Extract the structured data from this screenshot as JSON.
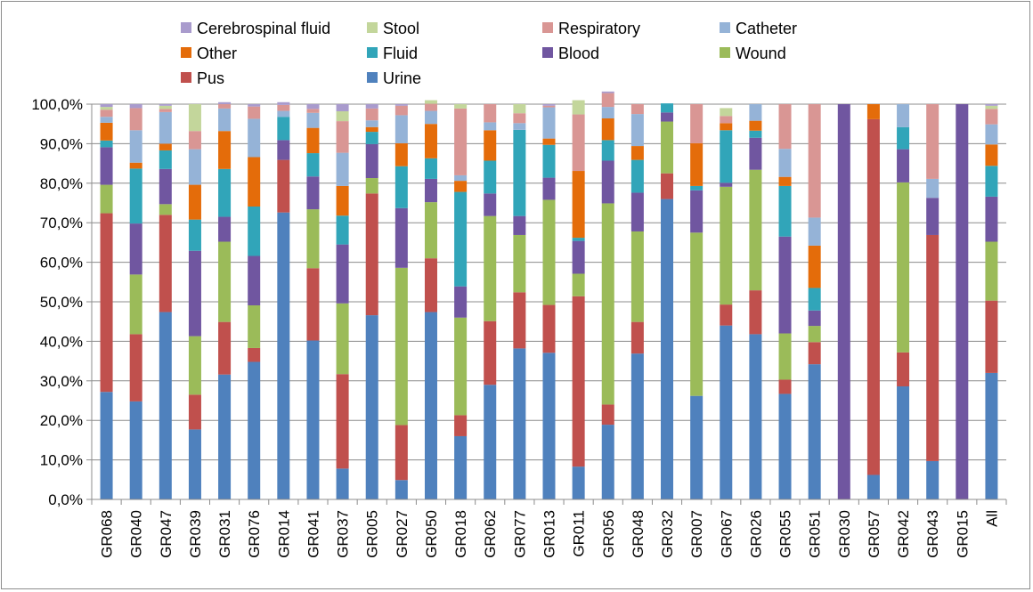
{
  "chart_data": {
    "type": "bar",
    "stacked": true,
    "ylim": [
      0,
      100
    ],
    "y_ticks": [
      "0,0%",
      "10,0%",
      "20,0%",
      "30,0%",
      "40,0%",
      "50,0%",
      "60,0%",
      "70,0%",
      "80,0%",
      "90,0%",
      "100,0%"
    ],
    "grid": "horizontal",
    "legend_position": "top",
    "legend": [
      {
        "name": "Cerebrospinal fluid",
        "color": "#a99bcd"
      },
      {
        "name": "Stool",
        "color": "#c3d69b"
      },
      {
        "name": "Respiratory",
        "color": "#d99694"
      },
      {
        "name": "Catheter",
        "color": "#95b3d7"
      },
      {
        "name": "Other",
        "color": "#e46c0a"
      },
      {
        "name": "Fluid",
        "color": "#31a5b9"
      },
      {
        "name": "Blood",
        "color": "#7056a0"
      },
      {
        "name": "Wound",
        "color": "#9bbb59"
      },
      {
        "name": "Pus",
        "color": "#c0504d"
      },
      {
        "name": "Urine",
        "color": "#4f81bd"
      }
    ],
    "categories": [
      "GR068",
      "GR040",
      "GR047",
      "GR039",
      "GR031",
      "GR076",
      "GR014",
      "GR041",
      "GR037",
      "GR005",
      "GR027",
      "GR050",
      "GR018",
      "GR062",
      "GR077",
      "GR013",
      "GR011",
      "GR056",
      "GR048",
      "GR032",
      "GR007",
      "GR067",
      "GR026",
      "GR055",
      "GR051",
      "GR030",
      "GR057",
      "GR042",
      "GR043",
      "GR015",
      "All"
    ],
    "series": [
      {
        "name": "Urine",
        "color": "#4f81bd",
        "values": [
          27.2,
          24.8,
          47.4,
          17.7,
          31.6,
          34.8,
          72.6,
          40.2,
          7.8,
          46.6,
          4.9,
          47.4,
          16.0,
          29.0,
          38.2,
          37.1,
          8.3,
          18.9,
          36.9,
          76.0,
          26.2,
          44.0,
          41.8,
          26.7,
          34.2,
          0,
          6.2,
          28.6,
          9.7,
          0,
          32.0
        ]
      },
      {
        "name": "Pus",
        "color": "#c0504d",
        "values": [
          45.2,
          17.0,
          24.6,
          8.8,
          13.3,
          3.5,
          13.3,
          18.3,
          23.9,
          30.8,
          13.9,
          13.6,
          5.3,
          16.1,
          14.2,
          12.1,
          43.1,
          5.1,
          8.0,
          6.5,
          0,
          5.3,
          11.1,
          3.6,
          5.6,
          0,
          90.0,
          8.6,
          57.2,
          0,
          18.3
        ]
      },
      {
        "name": "Wound",
        "color": "#9bbb59",
        "values": [
          7.2,
          15.1,
          2.7,
          14.8,
          20.3,
          10.8,
          0,
          14.9,
          17.9,
          3.9,
          39.8,
          14.2,
          24.7,
          26.6,
          14.5,
          26.6,
          5.7,
          50.9,
          22.9,
          13.1,
          41.3,
          29.8,
          30.5,
          11.7,
          4.1,
          0,
          0,
          43.0,
          0,
          0,
          14.9
        ]
      },
      {
        "name": "Blood",
        "color": "#7056a0",
        "values": [
          9.5,
          12.9,
          8.9,
          21.6,
          6.3,
          12.5,
          5.0,
          8.3,
          14.9,
          8.6,
          15.1,
          5.9,
          7.9,
          5.7,
          4.8,
          5.6,
          8.3,
          10.8,
          9.8,
          2.3,
          10.7,
          1.0,
          8.1,
          24.5,
          3.9,
          100,
          0,
          8.4,
          9.4,
          100,
          11.4
        ]
      },
      {
        "name": "Fluid",
        "color": "#31a5b9",
        "values": [
          1.7,
          13.9,
          4.7,
          7.9,
          12.1,
          12.5,
          5.9,
          5.9,
          7.3,
          3.1,
          10.6,
          5.2,
          23.9,
          8.3,
          21.8,
          8.3,
          0.8,
          5.2,
          8.3,
          2.3,
          1.1,
          13.3,
          1.8,
          12.8,
          5.7,
          0,
          0,
          5.6,
          0,
          0,
          7.8
        ]
      },
      {
        "name": "Other",
        "color": "#e46c0a",
        "values": [
          4.5,
          1.5,
          1.7,
          8.8,
          9.6,
          12.5,
          0,
          6.4,
          7.5,
          1.2,
          5.8,
          8.7,
          2.8,
          7.7,
          0,
          1.6,
          16.9,
          5.5,
          3.5,
          0,
          10.8,
          1.8,
          2.5,
          2.3,
          10.7,
          0,
          3.8,
          0,
          0,
          0,
          5.4
        ]
      },
      {
        "name": "Catheter",
        "color": "#95b3d7",
        "values": [
          1.5,
          8.2,
          8.0,
          9.0,
          5.7,
          9.7,
          1.5,
          3.8,
          8.4,
          1.7,
          7.1,
          3.3,
          1.4,
          2.0,
          1.7,
          7.9,
          0,
          2.9,
          8.1,
          0,
          0,
          0,
          4.2,
          7.1,
          7.1,
          0,
          0,
          5.8,
          4.8,
          0,
          5.1
        ]
      },
      {
        "name": "Respiratory",
        "color": "#d99694",
        "values": [
          1.8,
          5.6,
          0.8,
          4.6,
          1.1,
          3.1,
          1.5,
          1.0,
          8.0,
          3.0,
          2.4,
          1.8,
          16.9,
          4.6,
          2.5,
          0.4,
          14.3,
          3.5,
          2.5,
          0,
          9.9,
          1.8,
          0,
          11.3,
          28.7,
          0,
          0,
          0,
          18.9,
          0,
          3.9
        ]
      },
      {
        "name": "Stool",
        "color": "#c3d69b",
        "values": [
          0.7,
          0,
          0.8,
          6.8,
          0,
          0,
          0,
          0,
          2.5,
          0,
          0,
          0.9,
          1.1,
          0,
          2.3,
          0,
          3.6,
          0,
          0,
          0,
          0,
          2.0,
          0,
          0,
          0,
          0,
          0,
          0,
          0,
          0,
          0.8
        ]
      },
      {
        "name": "Cerebrospinal fluid",
        "color": "#a99bcd",
        "values": [
          0.7,
          1.0,
          0.4,
          0,
          0.5,
          0.6,
          0.7,
          1.2,
          1.8,
          1.1,
          0.4,
          0,
          0,
          0,
          0,
          0.4,
          0,
          0.4,
          0,
          0,
          0,
          0,
          0,
          0,
          0,
          0,
          0,
          0,
          0,
          0,
          0.4
        ]
      }
    ]
  }
}
